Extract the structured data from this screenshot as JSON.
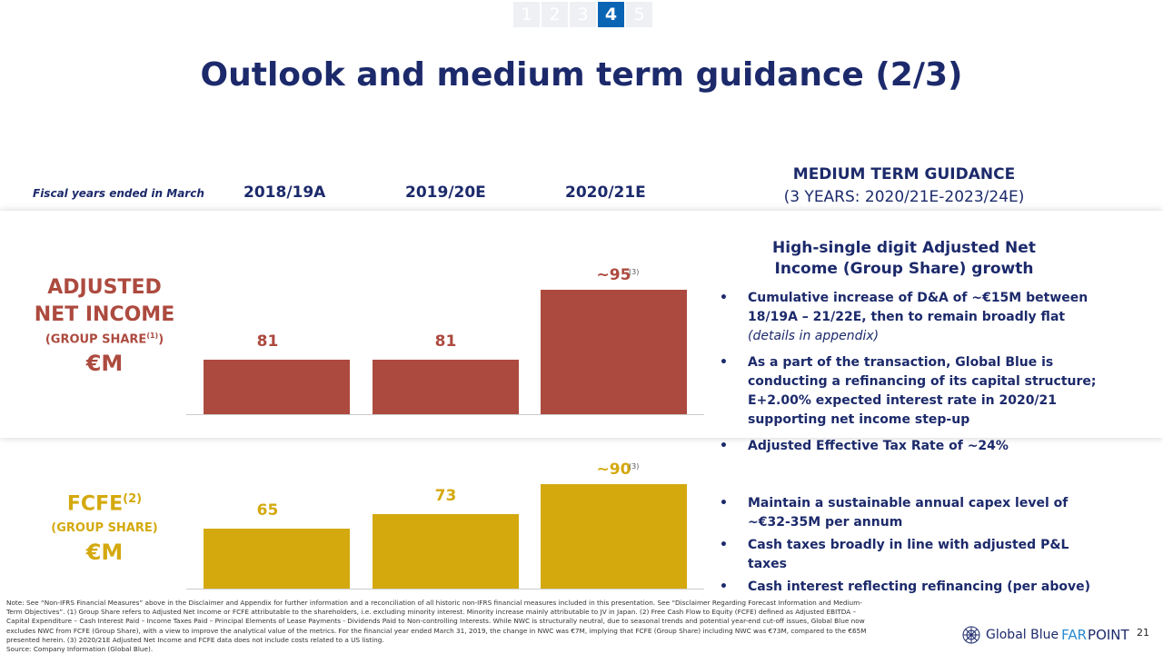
{
  "nav": {
    "pages": [
      "1",
      "2",
      "3",
      "4",
      "5"
    ],
    "active": "4"
  },
  "title": "Outlook and medium term guidance (2/3)",
  "header": {
    "fiscal_note": "Fiscal years ended in March",
    "years": [
      "2018/19A",
      "2019/20E",
      "2020/21E"
    ],
    "mtg_line1": "MEDIUM TERM GUIDANCE",
    "mtg_line2": "(3 YEARS: 2020/21E-2023/24E)"
  },
  "ani": {
    "label1": "ADJUSTED",
    "label2": "NET INCOME",
    "label3": "(GROUP SHARE",
    "sup": "(1)",
    "label3_end": ")",
    "unit": "€M",
    "heading": "High-single digit Adjusted Net Income (Group Share) growth",
    "bullets": [
      {
        "text": "Cumulative increase of D&A of ~€15M between 18/19A – 21/22E, then to remain broadly flat ",
        "italic": "(details in appendix)"
      },
      {
        "text": "As a part of the transaction, Global Blue is conducting a refinancing of its capital structure; E+2.00% expected interest rate in 2020/21 supporting net income step-up",
        "italic": ""
      },
      {
        "text": "Adjusted Effective Tax Rate of ~24%",
        "italic": ""
      }
    ]
  },
  "fcfe": {
    "label1": "FCFE",
    "sup": "(2)",
    "label2": "(GROUP SHARE)",
    "unit": "€M",
    "bullets": [
      {
        "text": "Maintain a sustainable annual capex level of ~€32-35M per annum"
      },
      {
        "text": "Cash taxes broadly in line with adjusted P&L taxes"
      },
      {
        "text": "Cash interest reflecting refinancing (per above)"
      }
    ]
  },
  "chart_data": [
    {
      "type": "bar",
      "title": "Adjusted Net Income (Group Share) €M",
      "categories": [
        "2018/19A",
        "2019/20E",
        "2020/21E"
      ],
      "values": [
        81,
        81,
        95
      ],
      "labels": [
        "81",
        "81",
        "~95"
      ],
      "annotations": [
        "",
        "",
        "(3)"
      ],
      "ylim": [
        70,
        100
      ],
      "color": "#ad4a3f"
    },
    {
      "type": "bar",
      "title": "FCFE (Group Share) €M",
      "categories": [
        "2018/19A",
        "2019/20E",
        "2020/21E"
      ],
      "values": [
        65,
        73,
        90
      ],
      "labels": [
        "65",
        "73",
        "~90"
      ],
      "annotations": [
        "",
        "",
        "(3)"
      ],
      "ylim": [
        31,
        95
      ],
      "color": "#d4a90e"
    }
  ],
  "footer": {
    "note": "Note: See “Non-IFRS Financial Measures” above in the Disclaimer and Appendix for further information and a reconciliation of all historic non-IFRS financial measures included in this presentation. See “Disclaimer Regarding Forecast Information and Medium-Term Objectives”. (1) Group Share refers to Adjusted Net Income or FCFE attributable to the shareholders, i.e. excluding minority interest. Minority increase mainly attributable to JV in Japan. (2) Free Cash Flow to Equity (FCFE) defined as Adjusted EBITDA – Capital Expenditure – Cash Interest Paid – Income Taxes Paid – Principal Elements of Lease Payments - Dividends Paid to Non-controlling Interests. While NWC is structurally neutral, due to seasonal trends and potential year-end cut-off issues, Global Blue now excludes NWC from FCFE (Group Share), with a view to improve the analytical value of the metrics. For the financial year ended March 31, 2019, the change in NWC was €7M, implying that FCFE (Group Share) including NWC was €73M, compared to the €65M presented herein.  (3) 2020/21E Adjusted Net Income and FCFE data does not include costs related to a US listing.",
    "source": "Source: Company Information (Global Blue).",
    "logo_a": "Global Blue ",
    "logo_b": "FAR ",
    "logo_c": "POINT",
    "page": "21"
  }
}
